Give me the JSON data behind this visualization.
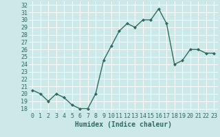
{
  "xlabel": "Humidex (Indice chaleur)",
  "x": [
    0,
    1,
    2,
    3,
    4,
    5,
    6,
    7,
    8,
    9,
    10,
    11,
    12,
    13,
    14,
    15,
    16,
    17,
    18,
    19,
    20,
    21,
    22,
    23
  ],
  "y": [
    20.5,
    20.0,
    19.0,
    20.0,
    19.5,
    18.5,
    18.0,
    18.0,
    20.0,
    24.5,
    26.5,
    28.5,
    29.5,
    29.0,
    30.0,
    30.0,
    31.5,
    29.5,
    24.0,
    24.5,
    26.0,
    26.0,
    25.5,
    25.5
  ],
  "line_color": "#2e6b5e",
  "marker": "D",
  "marker_size": 2.0,
  "line_width": 1.0,
  "bg_color": "#cce8e8",
  "axis_bg_color": "#cce8e8",
  "bottom_bar_color": "#5a8a7a",
  "grid_color": "#ffffff",
  "ylim": [
    17.5,
    32.5
  ],
  "xlim": [
    -0.5,
    23.5
  ],
  "yticks": [
    18,
    19,
    20,
    21,
    22,
    23,
    24,
    25,
    26,
    27,
    28,
    29,
    30,
    31,
    32
  ],
  "xticks": [
    0,
    1,
    2,
    3,
    4,
    5,
    6,
    7,
    8,
    9,
    10,
    11,
    12,
    13,
    14,
    15,
    16,
    17,
    18,
    19,
    20,
    21,
    22,
    23
  ],
  "xlabel_fontsize": 7,
  "tick_fontsize": 6,
  "label_color": "#2e6b5e"
}
